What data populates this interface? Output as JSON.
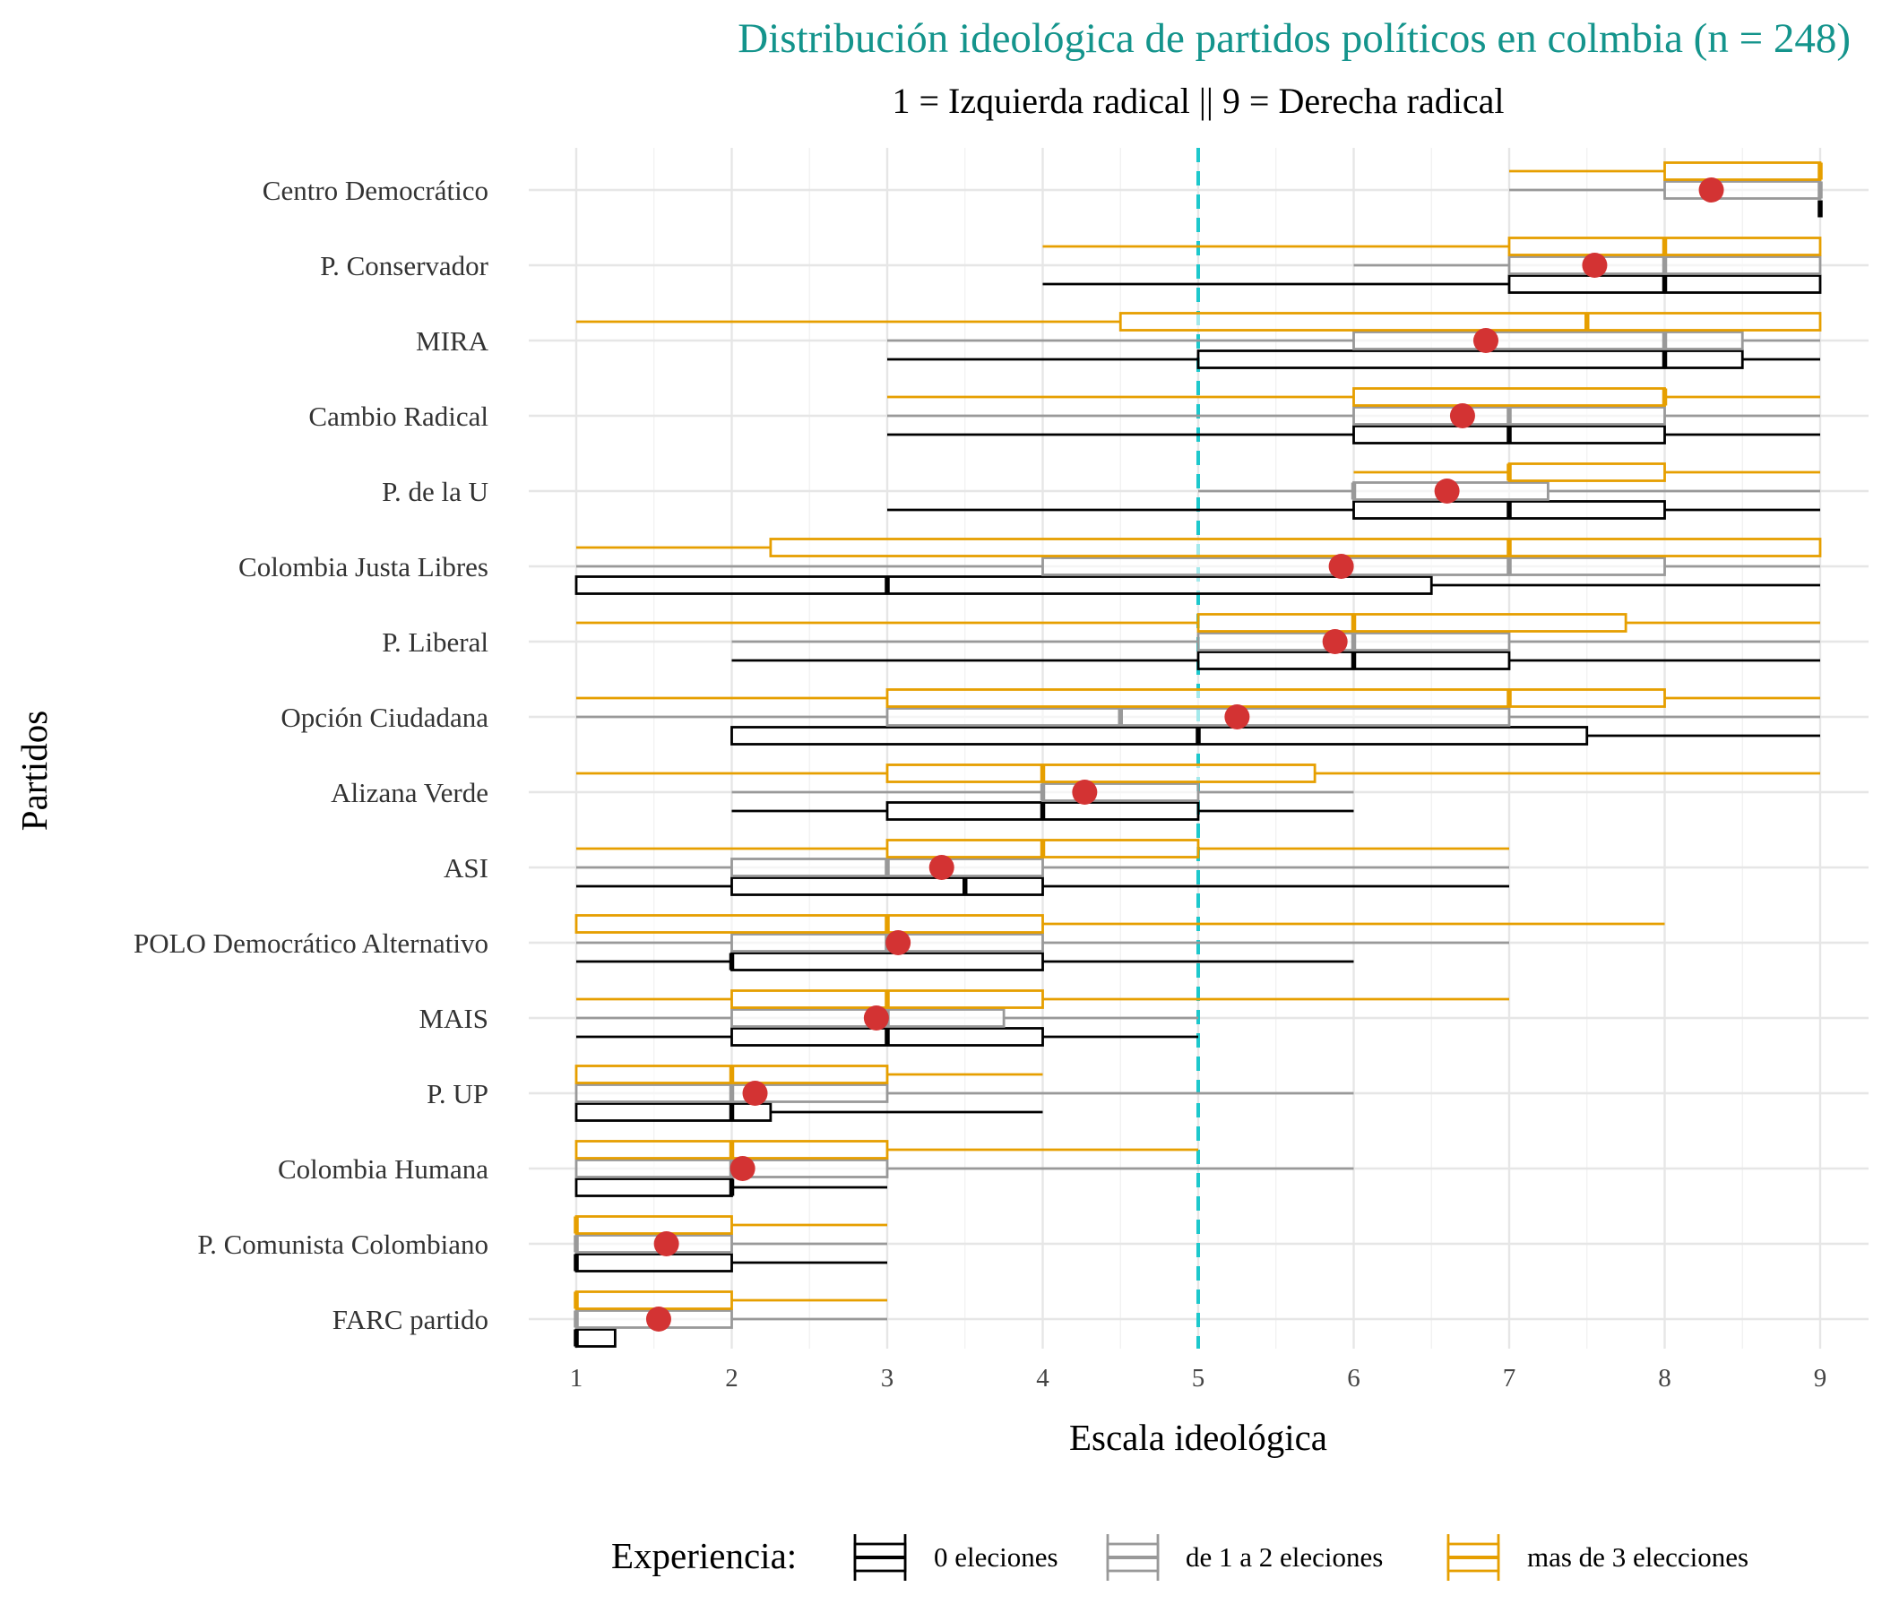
{
  "chart_data": {
    "type": "boxplot",
    "title": "Distribución ideológica de partidos políticos en colmbia (n = 248)",
    "subtitle": "1 = Izquierda radical  ||  9 = Derecha radical",
    "xlabel": "Escala ideológica",
    "ylabel": "Partidos",
    "xlim": [
      1,
      9
    ],
    "x_ticks": [
      "1",
      "2",
      "3",
      "4",
      "5",
      "6",
      "7",
      "8",
      "9"
    ],
    "reference_line": 5,
    "grid": true,
    "legend": {
      "title": "Experiencia:",
      "position": "bottom",
      "entries": [
        {
          "label": "0 eleciones",
          "color": "#000000"
        },
        {
          "label": "de 1 a 2 eleciones",
          "color": "#999999"
        },
        {
          "label": "mas de 3 elecciones",
          "color": "#e69f00"
        }
      ]
    },
    "mean_color": "#d33333",
    "reference_line_color": "#1dc8cc",
    "parties": [
      {
        "name": "Centro Democrático",
        "mean": 8.3,
        "boxes": [
          {
            "whisker": [
              9,
              9
            ],
            "q1": 9,
            "median": 9,
            "q3": 9
          },
          {
            "whisker": [
              7,
              9
            ],
            "q1": 8,
            "median": 9,
            "q3": 9
          },
          {
            "whisker": [
              7,
              9
            ],
            "q1": 8,
            "median": 9,
            "q3": 9
          }
        ]
      },
      {
        "name": "P. Conservador",
        "mean": 7.55,
        "boxes": [
          {
            "whisker": [
              4,
              9
            ],
            "q1": 7,
            "median": 8,
            "q3": 9
          },
          {
            "whisker": [
              6,
              9
            ],
            "q1": 7,
            "median": 8,
            "q3": 9
          },
          {
            "whisker": [
              4,
              9
            ],
            "q1": 7,
            "median": 8,
            "q3": 9
          }
        ]
      },
      {
        "name": "MIRA",
        "mean": 6.85,
        "boxes": [
          {
            "whisker": [
              3,
              9
            ],
            "q1": 5,
            "median": 8,
            "q3": 8.5
          },
          {
            "whisker": [
              3,
              9
            ],
            "q1": 6,
            "median": 8,
            "q3": 8.5
          },
          {
            "whisker": [
              1,
              9
            ],
            "q1": 4.5,
            "median": 7.5,
            "q3": 9
          }
        ]
      },
      {
        "name": "Cambio Radical",
        "mean": 6.7,
        "boxes": [
          {
            "whisker": [
              3,
              9
            ],
            "q1": 6,
            "median": 7,
            "q3": 8
          },
          {
            "whisker": [
              3,
              9
            ],
            "q1": 6,
            "median": 7,
            "q3": 8
          },
          {
            "whisker": [
              3,
              9
            ],
            "q1": 6,
            "median": 8,
            "q3": 8
          }
        ]
      },
      {
        "name": "P. de la U",
        "mean": 6.6,
        "boxes": [
          {
            "whisker": [
              3,
              9
            ],
            "q1": 6,
            "median": 7,
            "q3": 8
          },
          {
            "whisker": [
              5,
              9
            ],
            "q1": 6,
            "median": 6,
            "q3": 7.25
          },
          {
            "whisker": [
              6,
              9
            ],
            "q1": 7,
            "median": 7,
            "q3": 8
          }
        ]
      },
      {
        "name": "Colombia Justa Libres",
        "mean": 5.92,
        "boxes": [
          {
            "whisker": [
              1,
              9
            ],
            "q1": 1,
            "median": 3,
            "q3": 6.5
          },
          {
            "whisker": [
              1,
              9
            ],
            "q1": 4,
            "median": 7,
            "q3": 8
          },
          {
            "whisker": [
              1,
              9
            ],
            "q1": 2.25,
            "median": 7,
            "q3": 9
          }
        ]
      },
      {
        "name": "P. Liberal",
        "mean": 5.88,
        "boxes": [
          {
            "whisker": [
              2,
              9
            ],
            "q1": 5,
            "median": 6,
            "q3": 7
          },
          {
            "whisker": [
              2,
              9
            ],
            "q1": 5,
            "median": 6,
            "q3": 7
          },
          {
            "whisker": [
              1,
              9
            ],
            "q1": 5,
            "median": 6,
            "q3": 7.75
          }
        ]
      },
      {
        "name": "Opción Ciudadana",
        "mean": 5.25,
        "boxes": [
          {
            "whisker": [
              2,
              9
            ],
            "q1": 2,
            "median": 5,
            "q3": 7.5
          },
          {
            "whisker": [
              1,
              9
            ],
            "q1": 3,
            "median": 4.5,
            "q3": 7
          },
          {
            "whisker": [
              1,
              9
            ],
            "q1": 3,
            "median": 7,
            "q3": 8
          }
        ]
      },
      {
        "name": "Alizana Verde",
        "mean": 4.27,
        "boxes": [
          {
            "whisker": [
              2,
              6
            ],
            "q1": 3,
            "median": 4,
            "q3": 5
          },
          {
            "whisker": [
              2,
              6
            ],
            "q1": 4,
            "median": 4,
            "q3": 5
          },
          {
            "whisker": [
              1,
              9
            ],
            "q1": 3,
            "median": 4,
            "q3": 5.75
          }
        ]
      },
      {
        "name": "ASI",
        "mean": 3.35,
        "boxes": [
          {
            "whisker": [
              1,
              7
            ],
            "q1": 2,
            "median": 3.5,
            "q3": 4
          },
          {
            "whisker": [
              1,
              7
            ],
            "q1": 2,
            "median": 3,
            "q3": 4
          },
          {
            "whisker": [
              1,
              7
            ],
            "q1": 3,
            "median": 4,
            "q3": 5
          }
        ]
      },
      {
        "name": "POLO Democrático Alternativo",
        "mean": 3.07,
        "boxes": [
          {
            "whisker": [
              1,
              6
            ],
            "q1": 2,
            "median": 2,
            "q3": 4
          },
          {
            "whisker": [
              1,
              7
            ],
            "q1": 2,
            "median": 3,
            "q3": 4
          },
          {
            "whisker": [
              1,
              8
            ],
            "q1": 1,
            "median": 3,
            "q3": 4
          }
        ]
      },
      {
        "name": "MAIS",
        "mean": 2.93,
        "boxes": [
          {
            "whisker": [
              1,
              5
            ],
            "q1": 2,
            "median": 3,
            "q3": 4
          },
          {
            "whisker": [
              1,
              5
            ],
            "q1": 2,
            "median": 3,
            "q3": 3.75
          },
          {
            "whisker": [
              1,
              7
            ],
            "q1": 2,
            "median": 3,
            "q3": 4
          }
        ]
      },
      {
        "name": "P. UP",
        "mean": 2.15,
        "boxes": [
          {
            "whisker": [
              1,
              4
            ],
            "q1": 1,
            "median": 2,
            "q3": 2.25
          },
          {
            "whisker": [
              1,
              6
            ],
            "q1": 1,
            "median": 2,
            "q3": 3
          },
          {
            "whisker": [
              1,
              4
            ],
            "q1": 1,
            "median": 2,
            "q3": 3
          }
        ]
      },
      {
        "name": "Colombia Humana",
        "mean": 2.07,
        "boxes": [
          {
            "whisker": [
              1,
              3
            ],
            "q1": 1,
            "median": 2,
            "q3": 2
          },
          {
            "whisker": [
              1,
              6
            ],
            "q1": 1,
            "median": 2,
            "q3": 3
          },
          {
            "whisker": [
              1,
              5
            ],
            "q1": 1,
            "median": 2,
            "q3": 3
          }
        ]
      },
      {
        "name": "P. Comunista Colombiano",
        "mean": 1.58,
        "boxes": [
          {
            "whisker": [
              1,
              3
            ],
            "q1": 1,
            "median": 1,
            "q3": 2
          },
          {
            "whisker": [
              1,
              3
            ],
            "q1": 1,
            "median": 1,
            "q3": 2
          },
          {
            "whisker": [
              1,
              3
            ],
            "q1": 1,
            "median": 1,
            "q3": 2
          }
        ]
      },
      {
        "name": "FARC partido",
        "mean": 1.53,
        "boxes": [
          {
            "whisker": [
              1,
              1.25
            ],
            "q1": 1,
            "median": 1,
            "q3": 1.25
          },
          {
            "whisker": [
              1,
              3
            ],
            "q1": 1,
            "median": 1,
            "q3": 2
          },
          {
            "whisker": [
              1,
              3
            ],
            "q1": 1,
            "median": 1,
            "q3": 2
          }
        ]
      }
    ]
  }
}
